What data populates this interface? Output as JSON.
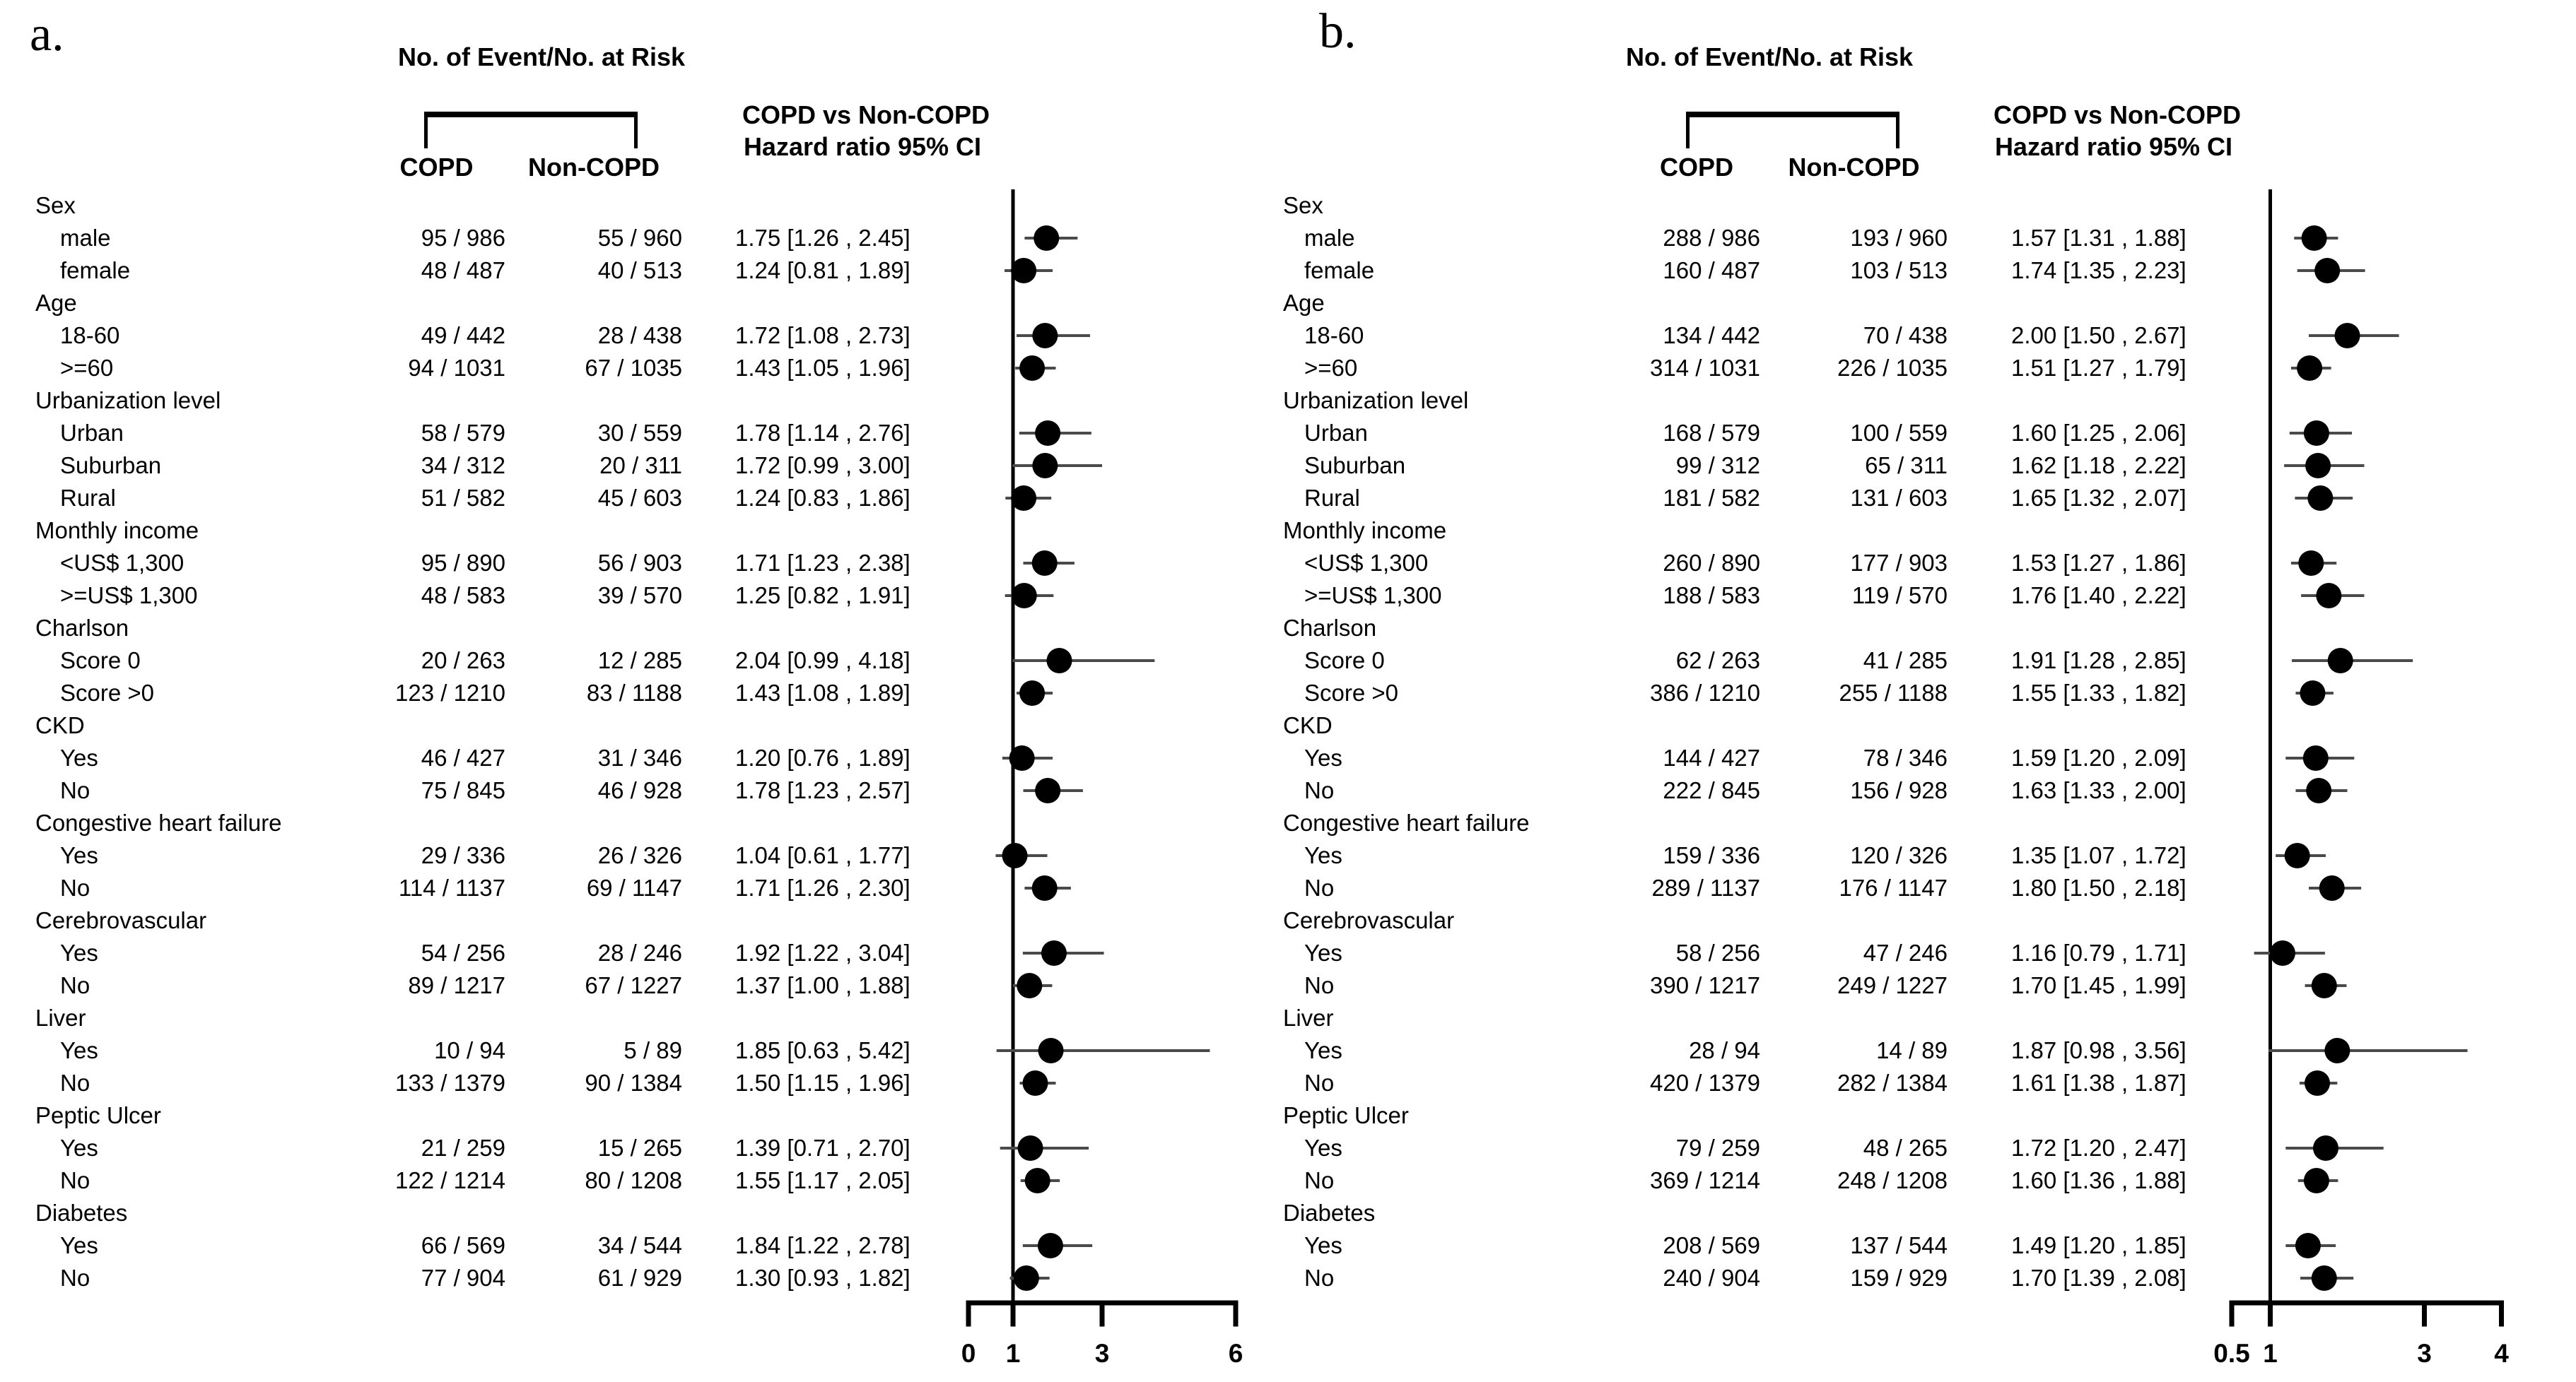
{
  "colors": {
    "marker": "#000000",
    "ci_line": "#4a4a4a",
    "reference_line": "#000000",
    "axis": "#000000",
    "text": "#000000",
    "background": "#ffffff"
  },
  "chart_data": [
    {
      "type": "scatter",
      "panel": "a.",
      "title": "No. of Event/No. at Risk",
      "col_headers": [
        "COPD",
        "Non-COPD"
      ],
      "hr_header": [
        "COPD vs Non-COPD",
        "Hazard ratio 95% CI"
      ],
      "xlim": [
        0,
        6
      ],
      "ticks": [
        0,
        1,
        3,
        6
      ],
      "ref_line": 1,
      "rows": [
        {
          "group": "Sex"
        },
        {
          "label": "male",
          "copd": "95 / 986",
          "noncopd": "55 / 960",
          "text": "1.75 [1.26 , 2.45]",
          "hr": 1.75,
          "lo": 1.26,
          "hi": 2.45
        },
        {
          "label": "female",
          "copd": "48 / 487",
          "noncopd": "40 / 513",
          "text": "1.24 [0.81 , 1.89]",
          "hr": 1.24,
          "lo": 0.81,
          "hi": 1.89
        },
        {
          "group": "Age"
        },
        {
          "label": "18-60",
          "copd": "49 / 442",
          "noncopd": "28 / 438",
          "text": "1.72 [1.08 , 2.73]",
          "hr": 1.72,
          "lo": 1.08,
          "hi": 2.73
        },
        {
          "label": ">=60",
          "copd": "94 / 1031",
          "noncopd": "67 / 1035",
          "text": "1.43 [1.05 , 1.96]",
          "hr": 1.43,
          "lo": 1.05,
          "hi": 1.96
        },
        {
          "group": "Urbanization level"
        },
        {
          "label": "Urban",
          "copd": "58 / 579",
          "noncopd": "30 / 559",
          "text": "1.78 [1.14 , 2.76]",
          "hr": 1.78,
          "lo": 1.14,
          "hi": 2.76
        },
        {
          "label": "Suburban",
          "copd": "34 / 312",
          "noncopd": "20 / 311",
          "text": "1.72 [0.99 , 3.00]",
          "hr": 1.72,
          "lo": 0.99,
          "hi": 3.0
        },
        {
          "label": "Rural",
          "copd": "51 / 582",
          "noncopd": "45 / 603",
          "text": "1.24 [0.83 , 1.86]",
          "hr": 1.24,
          "lo": 0.83,
          "hi": 1.86
        },
        {
          "group": "Monthly income"
        },
        {
          "label": "<US$ 1,300",
          "copd": "95 / 890",
          "noncopd": "56 / 903",
          "text": "1.71 [1.23 , 2.38]",
          "hr": 1.71,
          "lo": 1.23,
          "hi": 2.38
        },
        {
          "label": ">=US$ 1,300",
          "copd": "48 / 583",
          "noncopd": "39 / 570",
          "text": "1.25 [0.82 , 1.91]",
          "hr": 1.25,
          "lo": 0.82,
          "hi": 1.91
        },
        {
          "group": "Charlson"
        },
        {
          "label": "Score 0",
          "copd": "20 / 263",
          "noncopd": "12 / 285",
          "text": "2.04 [0.99 , 4.18]",
          "hr": 2.04,
          "lo": 0.99,
          "hi": 4.18
        },
        {
          "label": "Score >0",
          "copd": "123 / 1210",
          "noncopd": "83 / 1188",
          "text": "1.43 [1.08 , 1.89]",
          "hr": 1.43,
          "lo": 1.08,
          "hi": 1.89
        },
        {
          "group": "CKD"
        },
        {
          "label": "Yes",
          "copd": "46 / 427",
          "noncopd": "31 / 346",
          "text": "1.20 [0.76 , 1.89]",
          "hr": 1.2,
          "lo": 0.76,
          "hi": 1.89
        },
        {
          "label": "No",
          "copd": "75 / 845",
          "noncopd": "46 / 928",
          "text": "1.78 [1.23 , 2.57]",
          "hr": 1.78,
          "lo": 1.23,
          "hi": 2.57
        },
        {
          "group": "Congestive heart failure"
        },
        {
          "label": "Yes",
          "copd": "29 / 336",
          "noncopd": "26 / 326",
          "text": "1.04 [0.61 , 1.77]",
          "hr": 1.04,
          "lo": 0.61,
          "hi": 1.77
        },
        {
          "label": "No",
          "copd": "114 / 1137",
          "noncopd": "69 / 1147",
          "text": "1.71 [1.26 , 2.30]",
          "hr": 1.71,
          "lo": 1.26,
          "hi": 2.3
        },
        {
          "group": "Cerebrovascular"
        },
        {
          "label": "Yes",
          "copd": "54 / 256",
          "noncopd": "28 / 246",
          "text": "1.92 [1.22 , 3.04]",
          "hr": 1.92,
          "lo": 1.22,
          "hi": 3.04
        },
        {
          "label": "No",
          "copd": "89 / 1217",
          "noncopd": "67 / 1227",
          "text": "1.37 [1.00 , 1.88]",
          "hr": 1.37,
          "lo": 1.0,
          "hi": 1.88
        },
        {
          "group": "Liver"
        },
        {
          "label": "Yes",
          "copd": "10 / 94",
          "noncopd": "5 / 89",
          "text": "1.85 [0.63 , 5.42]",
          "hr": 1.85,
          "lo": 0.63,
          "hi": 5.42
        },
        {
          "label": "No",
          "copd": "133 / 1379",
          "noncopd": "90 / 1384",
          "text": "1.50 [1.15 , 1.96]",
          "hr": 1.5,
          "lo": 1.15,
          "hi": 1.96
        },
        {
          "group": "Peptic Ulcer"
        },
        {
          "label": "Yes",
          "copd": "21 / 259",
          "noncopd": "15 / 265",
          "text": "1.39 [0.71 , 2.70]",
          "hr": 1.39,
          "lo": 0.71,
          "hi": 2.7
        },
        {
          "label": "No",
          "copd": "122 / 1214",
          "noncopd": "80 / 1208",
          "text": "1.55 [1.17 , 2.05]",
          "hr": 1.55,
          "lo": 1.17,
          "hi": 2.05
        },
        {
          "group": "Diabetes"
        },
        {
          "label": "Yes",
          "copd": "66 / 569",
          "noncopd": "34 / 544",
          "text": "1.84 [1.22 , 2.78]",
          "hr": 1.84,
          "lo": 1.22,
          "hi": 2.78
        },
        {
          "label": "No",
          "copd": "77 / 904",
          "noncopd": "61 / 929",
          "text": "1.30 [0.93 , 1.82]",
          "hr": 1.3,
          "lo": 0.93,
          "hi": 1.82
        }
      ]
    },
    {
      "type": "scatter",
      "panel": "b.",
      "title": "No. of Event/No. at Risk",
      "col_headers": [
        "COPD",
        "Non-COPD"
      ],
      "hr_header": [
        "COPD vs Non-COPD",
        "Hazard ratio 95% CI"
      ],
      "xlim": [
        0.5,
        4
      ],
      "ticks": [
        0.5,
        1,
        3,
        4
      ],
      "ref_line": 1,
      "rows": [
        {
          "group": "Sex"
        },
        {
          "label": "male",
          "copd": "288 / 986",
          "noncopd": "193 / 960",
          "text": "1.57 [1.31 , 1.88]",
          "hr": 1.57,
          "lo": 1.31,
          "hi": 1.88
        },
        {
          "label": "female",
          "copd": "160 / 487",
          "noncopd": "103 / 513",
          "text": "1.74 [1.35 , 2.23]",
          "hr": 1.74,
          "lo": 1.35,
          "hi": 2.23
        },
        {
          "group": "Age"
        },
        {
          "label": "18-60",
          "copd": "134 / 442",
          "noncopd": "70 / 438",
          "text": "2.00 [1.50 , 2.67]",
          "hr": 2.0,
          "lo": 1.5,
          "hi": 2.67
        },
        {
          "label": ">=60",
          "copd": "314 / 1031",
          "noncopd": "226 / 1035",
          "text": "1.51 [1.27 , 1.79]",
          "hr": 1.51,
          "lo": 1.27,
          "hi": 1.79
        },
        {
          "group": "Urbanization level"
        },
        {
          "label": "Urban",
          "copd": "168 / 579",
          "noncopd": "100 / 559",
          "text": "1.60 [1.25 , 2.06]",
          "hr": 1.6,
          "lo": 1.25,
          "hi": 2.06
        },
        {
          "label": "Suburban",
          "copd": "99 / 312",
          "noncopd": "65 / 311",
          "text": "1.62 [1.18 , 2.22]",
          "hr": 1.62,
          "lo": 1.18,
          "hi": 2.22
        },
        {
          "label": "Rural",
          "copd": "181 / 582",
          "noncopd": "131 / 603",
          "text": "1.65 [1.32 , 2.07]",
          "hr": 1.65,
          "lo": 1.32,
          "hi": 2.07
        },
        {
          "group": "Monthly income"
        },
        {
          "label": "<US$ 1,300",
          "copd": "260 / 890",
          "noncopd": "177 / 903",
          "text": "1.53 [1.27 , 1.86]",
          "hr": 1.53,
          "lo": 1.27,
          "hi": 1.86
        },
        {
          "label": ">=US$ 1,300",
          "copd": "188 / 583",
          "noncopd": "119 / 570",
          "text": "1.76 [1.40 , 2.22]",
          "hr": 1.76,
          "lo": 1.4,
          "hi": 2.22
        },
        {
          "group": "Charlson"
        },
        {
          "label": "Score 0",
          "copd": "62 / 263",
          "noncopd": "41 / 285",
          "text": "1.91 [1.28 , 2.85]",
          "hr": 1.91,
          "lo": 1.28,
          "hi": 2.85
        },
        {
          "label": "Score >0",
          "copd": "386 / 1210",
          "noncopd": "255 / 1188",
          "text": "1.55 [1.33 , 1.82]",
          "hr": 1.55,
          "lo": 1.33,
          "hi": 1.82
        },
        {
          "group": "CKD"
        },
        {
          "label": "Yes",
          "copd": "144 / 427",
          "noncopd": "78 / 346",
          "text": "1.59 [1.20 , 2.09]",
          "hr": 1.59,
          "lo": 1.2,
          "hi": 2.09
        },
        {
          "label": "No",
          "copd": "222 / 845",
          "noncopd": "156 / 928",
          "text": "1.63 [1.33 , 2.00]",
          "hr": 1.63,
          "lo": 1.33,
          "hi": 2.0
        },
        {
          "group": "Congestive heart failure"
        },
        {
          "label": "Yes",
          "copd": "159 / 336",
          "noncopd": "120 / 326",
          "text": "1.35 [1.07 , 1.72]",
          "hr": 1.35,
          "lo": 1.07,
          "hi": 1.72
        },
        {
          "label": "No",
          "copd": "289 / 1137",
          "noncopd": "176 / 1147",
          "text": "1.80 [1.50 , 2.18]",
          "hr": 1.8,
          "lo": 1.5,
          "hi": 2.18
        },
        {
          "group": "Cerebrovascular"
        },
        {
          "label": "Yes",
          "copd": "58 / 256",
          "noncopd": "47 / 246",
          "text": "1.16 [0.79 , 1.71]",
          "hr": 1.16,
          "lo": 0.79,
          "hi": 1.71
        },
        {
          "label": "No",
          "copd": "390 / 1217",
          "noncopd": "249 / 1227",
          "text": "1.70 [1.45 , 1.99]",
          "hr": 1.7,
          "lo": 1.45,
          "hi": 1.99
        },
        {
          "group": "Liver"
        },
        {
          "label": "Yes",
          "copd": "28 / 94",
          "noncopd": "14 / 89",
          "text": "1.87 [0.98 , 3.56]",
          "hr": 1.87,
          "lo": 0.98,
          "hi": 3.56
        },
        {
          "label": "No",
          "copd": "420 / 1379",
          "noncopd": "282 / 1384",
          "text": "1.61 [1.38 , 1.87]",
          "hr": 1.61,
          "lo": 1.38,
          "hi": 1.87
        },
        {
          "group": "Peptic Ulcer"
        },
        {
          "label": "Yes",
          "copd": "79 / 259",
          "noncopd": "48 / 265",
          "text": "1.72 [1.20 , 2.47]",
          "hr": 1.72,
          "lo": 1.2,
          "hi": 2.47
        },
        {
          "label": "No",
          "copd": "369 / 1214",
          "noncopd": "248 / 1208",
          "text": "1.60 [1.36 , 1.88]",
          "hr": 1.6,
          "lo": 1.36,
          "hi": 1.88
        },
        {
          "group": "Diabetes"
        },
        {
          "label": "Yes",
          "copd": "208 / 569",
          "noncopd": "137 / 544",
          "text": "1.49 [1.20 , 1.85]",
          "hr": 1.49,
          "lo": 1.2,
          "hi": 1.85
        },
        {
          "label": "No",
          "copd": "240 / 904",
          "noncopd": "159 / 929",
          "text": "1.70 [1.39 , 2.08]",
          "hr": 1.7,
          "lo": 1.39,
          "hi": 2.08
        }
      ]
    }
  ]
}
